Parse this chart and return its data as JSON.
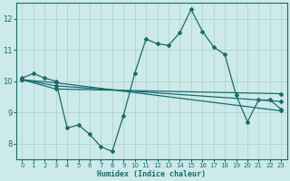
{
  "xlabel": "Humidex (Indice chaleur)",
  "ylabel": "",
  "xlim": [
    -0.5,
    23.5
  ],
  "ylim": [
    7.5,
    12.5
  ],
  "yticks": [
    8,
    9,
    10,
    11,
    12
  ],
  "xticks": [
    0,
    1,
    2,
    3,
    4,
    5,
    6,
    7,
    8,
    9,
    10,
    11,
    12,
    13,
    14,
    15,
    16,
    17,
    18,
    19,
    20,
    21,
    22,
    23
  ],
  "bg_color": "#cceaea",
  "grid_color": "#b0cccc",
  "line_color": "#1a6b6b",
  "lines": [
    {
      "x": [
        0,
        1,
        2,
        3,
        4,
        5,
        6,
        7,
        8,
        9,
        10,
        11,
        12,
        13,
        14,
        15,
        16,
        17,
        18,
        19,
        20,
        21,
        22,
        23
      ],
      "y": [
        10.1,
        10.25,
        10.1,
        10.0,
        8.5,
        8.6,
        8.3,
        7.9,
        7.75,
        8.9,
        10.25,
        11.35,
        11.2,
        11.15,
        11.55,
        12.3,
        11.6,
        11.1,
        10.85,
        9.55,
        8.7,
        9.4,
        9.4,
        9.1
      ]
    },
    {
      "x": [
        0,
        3,
        23
      ],
      "y": [
        10.05,
        9.95,
        9.05
      ]
    },
    {
      "x": [
        0,
        3,
        23
      ],
      "y": [
        10.05,
        9.85,
        9.35
      ]
    },
    {
      "x": [
        0,
        3,
        23
      ],
      "y": [
        10.05,
        9.75,
        9.6
      ]
    }
  ],
  "marker": "D",
  "markersize": 2.0,
  "linewidth": 0.9,
  "figsize": [
    3.2,
    2.0
  ],
  "dpi": 100
}
